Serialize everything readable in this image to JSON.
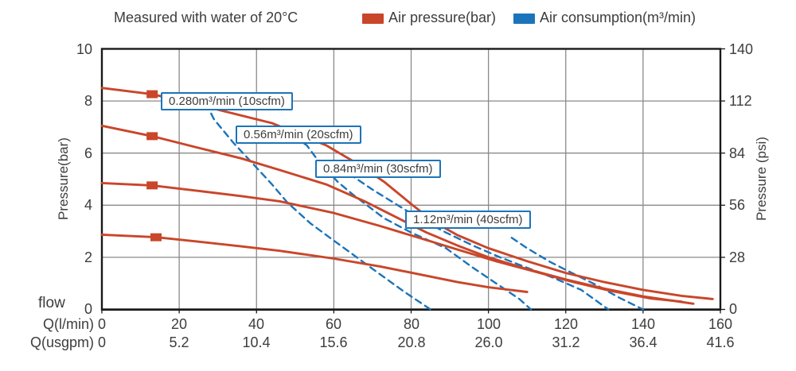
{
  "title": "Measured with water of 20°C",
  "legend": [
    {
      "label": "Air pressure(bar)",
      "color": "#c9462a",
      "style": "solid"
    },
    {
      "label": "Air consumption(m³/min)",
      "color": "#1b74ba",
      "style": "dashed"
    }
  ],
  "colors": {
    "pressure_curve": "#c9462a",
    "consumption_curve": "#1b74ba",
    "grid": "#8a8a8a",
    "frame": "#1a1a1a",
    "annotation_border": "#1b74ba",
    "text": "#3d3d3d"
  },
  "axes": {
    "left": {
      "title": "Pressure(bar)",
      "ticks": [
        "10",
        "8",
        "6",
        "4",
        "2",
        "0"
      ]
    },
    "right": {
      "title": "Pressure (psi)",
      "ticks": [
        "140",
        "112",
        "84",
        "56",
        "28",
        "0"
      ]
    },
    "bottom": {
      "flow_label": "flow",
      "rows": [
        {
          "header": "Q(l/min)",
          "values": [
            "0",
            "20",
            "40",
            "60",
            "80",
            "100",
            "120",
            "140",
            "160"
          ]
        },
        {
          "header": "Q(usgpm)",
          "values": [
            "0",
            "5.2",
            "10.4",
            "15.6",
            "20.8",
            "26.0",
            "31.2",
            "36.4",
            "41.6"
          ]
        }
      ]
    }
  },
  "annotations": [
    {
      "label": "0.280m³/min (10scfm)"
    },
    {
      "label": "0.56m³/min (20scfm)"
    },
    {
      "label": "0.84m³/min (30scfm)"
    },
    {
      "label": "1.12m³/min (40scfm)"
    }
  ],
  "chart_data": {
    "type": "line",
    "title": "Measured with water of 20°C",
    "xlabel": "Q(l/min)",
    "x2label": "Q(usgpm)",
    "ylabel": "Pressure(bar)",
    "y2label": "Pressure (psi)",
    "xlim": [
      0,
      160
    ],
    "ylim": [
      0,
      10
    ],
    "y2lim": [
      0,
      140
    ],
    "x_ticks": [
      0,
      20,
      40,
      60,
      80,
      100,
      120,
      140,
      160
    ],
    "x2_ticks": [
      0,
      5.2,
      10.4,
      15.6,
      20.8,
      26.0,
      31.2,
      36.4,
      41.6
    ],
    "y_ticks": [
      0,
      2,
      4,
      6,
      8,
      10
    ],
    "y2_ticks": [
      0,
      28,
      56,
      84,
      112,
      140
    ],
    "grid": true,
    "legend_position": "top",
    "series": [
      {
        "name": "Air pressure - 0.280m³/min (10scfm)",
        "group": "pressure",
        "color": "#c9462a",
        "dash": false,
        "marker": [
          13,
          8.26
        ],
        "points": [
          [
            0,
            8.5
          ],
          [
            13,
            8.26
          ],
          [
            25,
            7.85
          ],
          [
            44,
            7.15
          ],
          [
            58,
            6.3
          ],
          [
            66,
            5.6
          ],
          [
            73,
            4.9
          ],
          [
            80,
            4.05
          ],
          [
            86,
            3.35
          ],
          [
            92,
            2.85
          ],
          [
            100,
            2.35
          ],
          [
            110,
            1.85
          ],
          [
            120,
            1.4
          ],
          [
            130,
            1.05
          ],
          [
            140,
            0.75
          ],
          [
            150,
            0.52
          ],
          [
            158,
            0.4
          ]
        ]
      },
      {
        "name": "Air pressure - 0.56m³/min (20scfm)",
        "group": "pressure",
        "color": "#c9462a",
        "dash": false,
        "marker": [
          13,
          6.65
        ],
        "points": [
          [
            0,
            7.05
          ],
          [
            13,
            6.65
          ],
          [
            25,
            6.2
          ],
          [
            36,
            5.8
          ],
          [
            46,
            5.35
          ],
          [
            58,
            4.8
          ],
          [
            68,
            4.15
          ],
          [
            76,
            3.55
          ],
          [
            84,
            2.95
          ],
          [
            92,
            2.45
          ],
          [
            100,
            2.0
          ],
          [
            110,
            1.55
          ],
          [
            120,
            1.15
          ],
          [
            130,
            0.8
          ],
          [
            140,
            0.5
          ],
          [
            153,
            0.22
          ]
        ]
      },
      {
        "name": "Air pressure - 0.84m³/min (30scfm)",
        "group": "pressure",
        "color": "#c9462a",
        "dash": false,
        "marker": [
          13,
          4.76
        ],
        "points": [
          [
            0,
            4.85
          ],
          [
            13,
            4.76
          ],
          [
            25,
            4.55
          ],
          [
            36,
            4.35
          ],
          [
            46,
            4.15
          ],
          [
            60,
            3.7
          ],
          [
            72,
            3.2
          ],
          [
            82,
            2.75
          ],
          [
            92,
            2.3
          ],
          [
            102,
            1.85
          ],
          [
            112,
            1.45
          ],
          [
            122,
            1.05
          ],
          [
            132,
            0.7
          ],
          [
            142,
            0.42
          ],
          [
            150,
            0.3
          ]
        ]
      },
      {
        "name": "Air pressure - 1.12m³/min (40scfm)",
        "group": "pressure",
        "color": "#c9462a",
        "dash": false,
        "marker": [
          14,
          2.77
        ],
        "points": [
          [
            0,
            2.87
          ],
          [
            14,
            2.77
          ],
          [
            25,
            2.6
          ],
          [
            36,
            2.42
          ],
          [
            46,
            2.25
          ],
          [
            60,
            1.95
          ],
          [
            72,
            1.65
          ],
          [
            82,
            1.35
          ],
          [
            92,
            1.05
          ],
          [
            100,
            0.85
          ],
          [
            110,
            0.67
          ]
        ]
      },
      {
        "name": "Air consumption - 0.280m³/min (10scfm)",
        "group": "consumption",
        "color": "#1b74ba",
        "dash": true,
        "points": [
          [
            27,
            7.9
          ],
          [
            29,
            7.3
          ],
          [
            34,
            6.4
          ],
          [
            39,
            5.6
          ],
          [
            44,
            4.8
          ],
          [
            48,
            4.1
          ],
          [
            54,
            3.3
          ],
          [
            59,
            2.75
          ],
          [
            65,
            2.1
          ],
          [
            71,
            1.45
          ],
          [
            78,
            0.7
          ],
          [
            85,
            0
          ]
        ]
      },
      {
        "name": "Air consumption - 0.56m³/min (20scfm)",
        "group": "consumption",
        "color": "#1b74ba",
        "dash": true,
        "points": [
          [
            50,
            6.6
          ],
          [
            53,
            6.3
          ],
          [
            56,
            5.7
          ],
          [
            61,
            4.9
          ],
          [
            65,
            4.4
          ],
          [
            69,
            3.95
          ],
          [
            73,
            3.5
          ],
          [
            80,
            2.95
          ],
          [
            89,
            2.35
          ],
          [
            96,
            1.6
          ],
          [
            102,
            1.0
          ],
          [
            108,
            0.4
          ],
          [
            111,
            0
          ]
        ]
      },
      {
        "name": "Air consumption - 0.84m³/min (30scfm)",
        "group": "consumption",
        "color": "#1b74ba",
        "dash": true,
        "points": [
          [
            64,
            5.2
          ],
          [
            70,
            4.6
          ],
          [
            76,
            4.05
          ],
          [
            82,
            3.5
          ],
          [
            89,
            2.95
          ],
          [
            96,
            2.45
          ],
          [
            103,
            2.0
          ],
          [
            110,
            1.6
          ],
          [
            117,
            1.2
          ],
          [
            124,
            0.75
          ],
          [
            131,
            0
          ]
        ]
      },
      {
        "name": "Air consumption - 1.12m³/min (40scfm)",
        "group": "consumption",
        "color": "#1b74ba",
        "dash": true,
        "points": [
          [
            106,
            2.75
          ],
          [
            110,
            2.35
          ],
          [
            116,
            1.82
          ],
          [
            122,
            1.37
          ],
          [
            128,
            0.93
          ],
          [
            134,
            0.44
          ],
          [
            140,
            0
          ]
        ]
      }
    ]
  }
}
